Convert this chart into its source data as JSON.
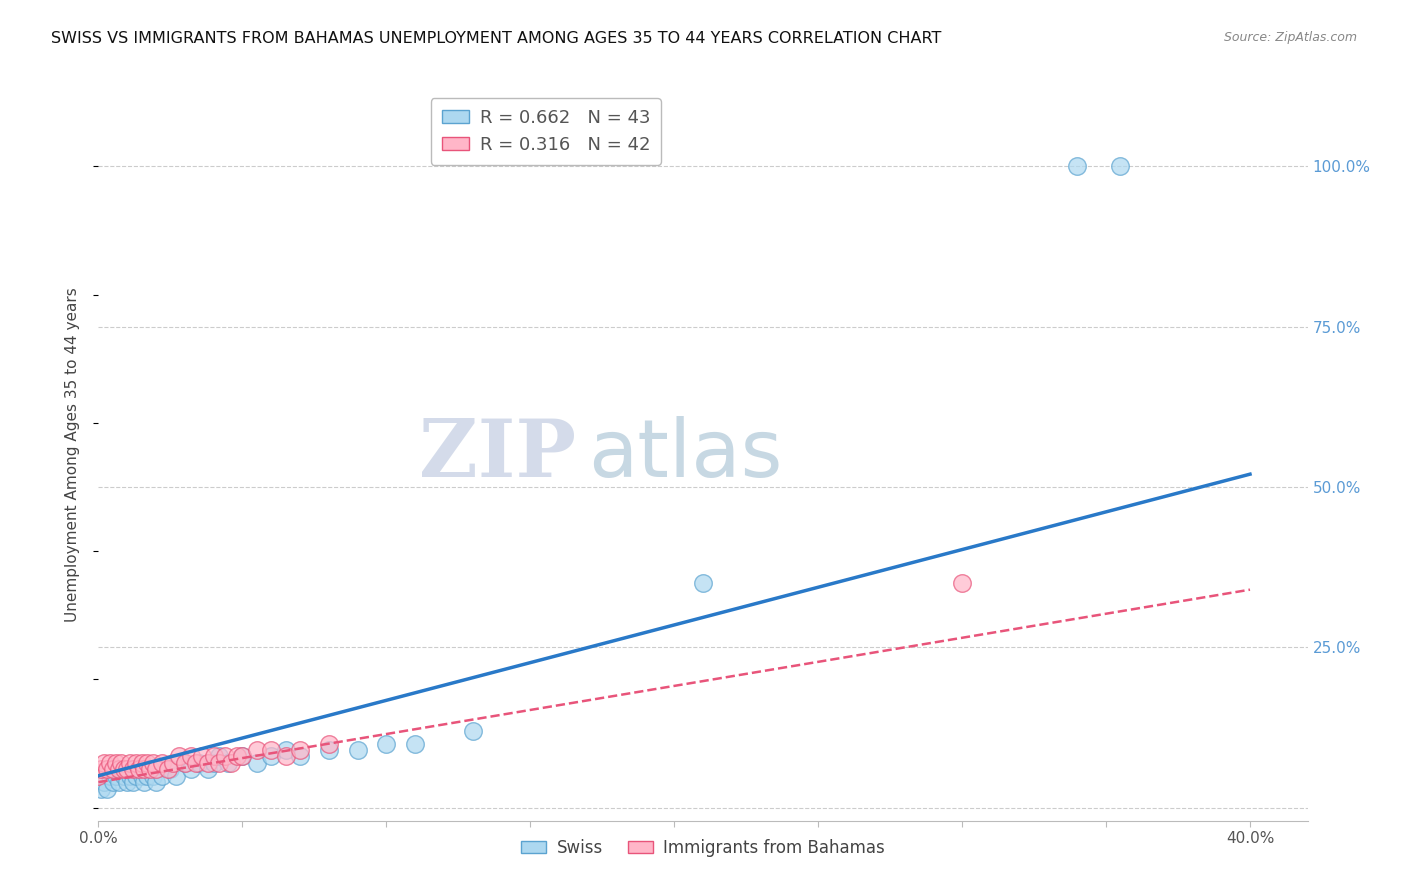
{
  "title": "SWISS VS IMMIGRANTS FROM BAHAMAS UNEMPLOYMENT AMONG AGES 35 TO 44 YEARS CORRELATION CHART",
  "source": "Source: ZipAtlas.com",
  "ylabel": "Unemployment Among Ages 35 to 44 years",
  "xlim": [
    0.0,
    0.42
  ],
  "ylim": [
    -0.02,
    1.12
  ],
  "watermark_zip": "ZIP",
  "watermark_atlas": "atlas",
  "legend_r_swiss": "0.662",
  "legend_n_swiss": "43",
  "legend_r_bahamas": "0.316",
  "legend_n_bahamas": "42",
  "legend_label_swiss": "Swiss",
  "legend_label_bahamas": "Immigrants from Bahamas",
  "color_swiss_fill": "#ADD8F0",
  "color_swiss_edge": "#5BA3D0",
  "color_bahamas_fill": "#FFB6C8",
  "color_bahamas_edge": "#E8547A",
  "color_trend_swiss": "#2979C8",
  "color_trend_bahamas": "#E8547A",
  "grid_color": "#CCCCCC",
  "background_color": "#FFFFFF",
  "title_fontsize": 11.5,
  "swiss_trend_slope": 1.175,
  "swiss_trend_intercept": 0.05,
  "bahamas_trend_slope": 0.75,
  "bahamas_trend_intercept": 0.04,
  "swiss_x": [
    0.001,
    0.002,
    0.003,
    0.004,
    0.005,
    0.006,
    0.007,
    0.008,
    0.009,
    0.01,
    0.011,
    0.012,
    0.013,
    0.014,
    0.015,
    0.016,
    0.017,
    0.018,
    0.019,
    0.02,
    0.022,
    0.025,
    0.027,
    0.03,
    0.032,
    0.035,
    0.038,
    0.04,
    0.042,
    0.045,
    0.05,
    0.055,
    0.06,
    0.065,
    0.07,
    0.08,
    0.09,
    0.1,
    0.11,
    0.13,
    0.21,
    0.34,
    0.355
  ],
  "swiss_y": [
    0.03,
    0.04,
    0.03,
    0.05,
    0.04,
    0.05,
    0.04,
    0.06,
    0.05,
    0.04,
    0.05,
    0.04,
    0.05,
    0.06,
    0.05,
    0.04,
    0.05,
    0.06,
    0.05,
    0.04,
    0.05,
    0.06,
    0.05,
    0.07,
    0.06,
    0.07,
    0.06,
    0.07,
    0.08,
    0.07,
    0.08,
    0.07,
    0.08,
    0.09,
    0.08,
    0.09,
    0.09,
    0.1,
    0.1,
    0.12,
    0.35,
    1.0,
    1.0
  ],
  "bahamas_x": [
    0.0,
    0.001,
    0.002,
    0.003,
    0.004,
    0.005,
    0.006,
    0.007,
    0.008,
    0.009,
    0.01,
    0.011,
    0.012,
    0.013,
    0.014,
    0.015,
    0.016,
    0.017,
    0.018,
    0.019,
    0.02,
    0.022,
    0.024,
    0.026,
    0.028,
    0.03,
    0.032,
    0.034,
    0.036,
    0.038,
    0.04,
    0.042,
    0.044,
    0.046,
    0.048,
    0.05,
    0.055,
    0.06,
    0.065,
    0.07,
    0.08,
    0.3
  ],
  "bahamas_y": [
    0.05,
    0.06,
    0.07,
    0.06,
    0.07,
    0.06,
    0.07,
    0.06,
    0.07,
    0.06,
    0.06,
    0.07,
    0.06,
    0.07,
    0.06,
    0.07,
    0.06,
    0.07,
    0.06,
    0.07,
    0.06,
    0.07,
    0.06,
    0.07,
    0.08,
    0.07,
    0.08,
    0.07,
    0.08,
    0.07,
    0.08,
    0.07,
    0.08,
    0.07,
    0.08,
    0.08,
    0.09,
    0.09,
    0.08,
    0.09,
    0.1,
    0.35
  ]
}
